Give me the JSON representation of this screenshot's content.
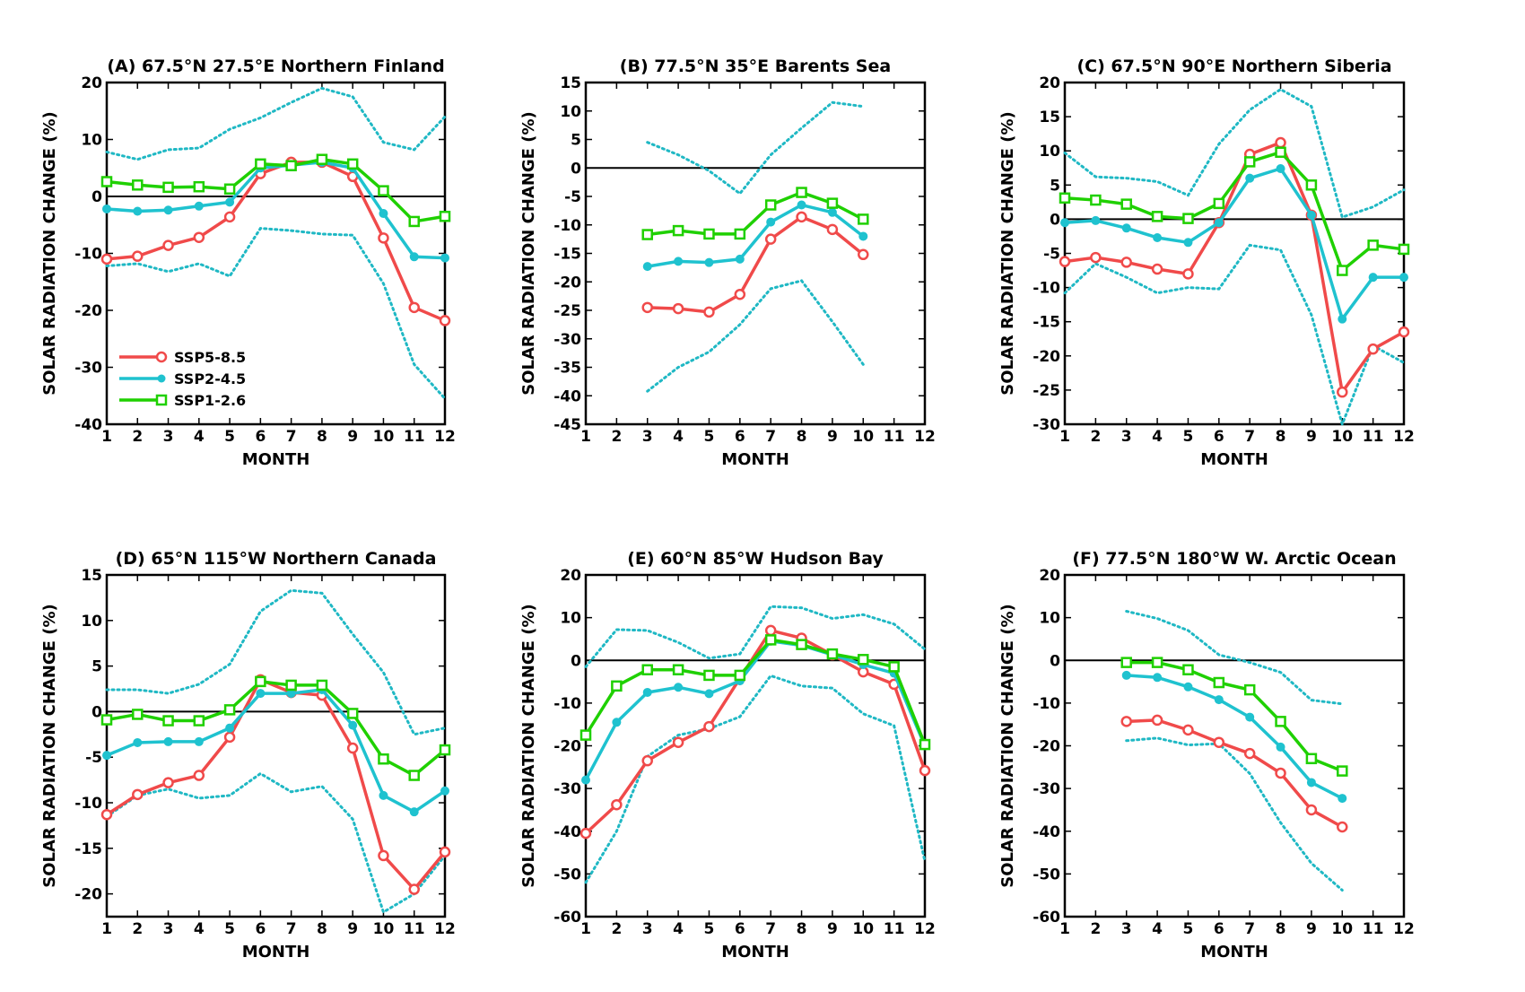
{
  "colors": {
    "ssp585": "#f04a4a",
    "ssp245": "#1fc2cf",
    "ssp126": "#1fd000",
    "spread": "#1fb8c4",
    "axis": "#000000"
  },
  "legend": {
    "placement": "lower-left of panel A",
    "items": [
      {
        "key": "ssp585",
        "label": "SSP5-8.5",
        "marker": "open-circle"
      },
      {
        "key": "ssp245",
        "label": "SSP2-4.5",
        "marker": "filled-circle"
      },
      {
        "key": "ssp126",
        "label": "SSP1-2.6",
        "marker": "open-square"
      }
    ]
  },
  "chart_data": [
    {
      "type": "line",
      "title": "(A) 67.5°N 27.5°E Northern Finland",
      "xlabel": "MONTH",
      "ylabel": "SOLAR RADIATION CHANGE (%)",
      "xlim": [
        1,
        12
      ],
      "ylim": [
        -40,
        20
      ],
      "xticks": [
        1,
        2,
        3,
        4,
        5,
        6,
        7,
        8,
        9,
        10,
        11,
        12
      ],
      "yticks": [
        -40,
        -30,
        -20,
        -10,
        0,
        10,
        20
      ],
      "zero_line": true,
      "grid": false,
      "series": [
        {
          "name": "SSP5-8.5",
          "key": "ssp585",
          "x": [
            1,
            2,
            3,
            4,
            5,
            6,
            7,
            8,
            9,
            10,
            11,
            12
          ],
          "y": [
            -11,
            -10.5,
            -8.6,
            -7.2,
            -3.6,
            4,
            6,
            6,
            3.5,
            -7.3,
            -19.5,
            -21.8
          ]
        },
        {
          "name": "SSP2-4.5",
          "key": "ssp245",
          "x": [
            1,
            2,
            3,
            4,
            5,
            6,
            7,
            8,
            9,
            10,
            11,
            12
          ],
          "y": [
            -2.2,
            -2.6,
            -2.4,
            -1.7,
            -1,
            5,
            5.5,
            6,
            5,
            -3,
            -10.6,
            -10.8
          ]
        },
        {
          "name": "SSP1-2.6",
          "key": "ssp126",
          "x": [
            1,
            2,
            3,
            4,
            5,
            6,
            7,
            8,
            9,
            10,
            11,
            12
          ],
          "y": [
            2.6,
            2,
            1.6,
            1.7,
            1.3,
            5.7,
            5.4,
            6.5,
            5.7,
            1,
            -4.4,
            -3.5
          ]
        }
      ],
      "spread_upper": {
        "x": [
          1,
          2,
          3,
          4,
          5,
          6,
          7,
          8,
          9,
          10,
          11,
          12
        ],
        "y": [
          7.8,
          6.5,
          8.2,
          8.5,
          11.8,
          13.8,
          16.5,
          19,
          17.5,
          9.5,
          8.2,
          14
        ]
      },
      "spread_lower": {
        "x": [
          1,
          2,
          3,
          4,
          5,
          6,
          7,
          8,
          9,
          10,
          11,
          12
        ],
        "y": [
          -12.2,
          -11.8,
          -13.2,
          -11.8,
          -14,
          -5.6,
          -6,
          -6.6,
          -6.8,
          -15.3,
          -29.5,
          -35.5
        ]
      }
    },
    {
      "type": "line",
      "title": "(B) 77.5°N 35°E Barents Sea",
      "xlabel": "MONTH",
      "ylabel": "SOLAR RADIATION CHANGE (%)",
      "xlim": [
        1,
        12
      ],
      "ylim": [
        -45,
        15
      ],
      "xticks": [
        1,
        2,
        3,
        4,
        5,
        6,
        7,
        8,
        9,
        10,
        11,
        12
      ],
      "yticks": [
        -45,
        -40,
        -35,
        -30,
        -25,
        -20,
        -15,
        -10,
        -5,
        0,
        5,
        10,
        15
      ],
      "zero_line": true,
      "grid": false,
      "series": [
        {
          "name": "SSP5-8.5",
          "key": "ssp585",
          "x": [
            3,
            4,
            5,
            6,
            7,
            8,
            9,
            10
          ],
          "y": [
            -24.5,
            -24.7,
            -25.3,
            -22.2,
            -12.5,
            -8.6,
            -10.8,
            -15.2
          ]
        },
        {
          "name": "SSP2-4.5",
          "key": "ssp245",
          "x": [
            3,
            4,
            5,
            6,
            7,
            8,
            9,
            10
          ],
          "y": [
            -17.3,
            -16.4,
            -16.6,
            -16,
            -9.5,
            -6.5,
            -7.8,
            -12
          ]
        },
        {
          "name": "SSP1-2.6",
          "key": "ssp126",
          "x": [
            3,
            4,
            5,
            6,
            7,
            8,
            9,
            10
          ],
          "y": [
            -11.7,
            -11,
            -11.6,
            -11.6,
            -6.5,
            -4.3,
            -6.2,
            -9
          ]
        }
      ],
      "spread_upper": {
        "x": [
          3,
          4,
          5,
          6,
          7,
          8,
          9,
          10
        ],
        "y": [
          4.5,
          2.3,
          -0.5,
          -4.5,
          2.3,
          7,
          11.5,
          10.8
        ]
      },
      "spread_lower": {
        "x": [
          3,
          4,
          5,
          6,
          7,
          8,
          9,
          10
        ],
        "y": [
          -39.2,
          -35,
          -32.3,
          -27.5,
          -21.2,
          -19.8,
          -27,
          -34.5
        ]
      }
    },
    {
      "type": "line",
      "title": "(C) 67.5°N 90°E Northern Siberia",
      "xlabel": "MONTH",
      "ylabel": "SOLAR RADIATION CHANGE (%)",
      "xlim": [
        1,
        12
      ],
      "ylim": [
        -30,
        20
      ],
      "xticks": [
        1,
        2,
        3,
        4,
        5,
        6,
        7,
        8,
        9,
        10,
        11,
        12
      ],
      "yticks": [
        -30,
        -25,
        -20,
        -15,
        -10,
        -5,
        0,
        5,
        10,
        15,
        20
      ],
      "zero_line": true,
      "grid": false,
      "series": [
        {
          "name": "SSP5-8.5",
          "key": "ssp585",
          "x": [
            1,
            2,
            3,
            4,
            5,
            6,
            7,
            8,
            9,
            10,
            11,
            12
          ],
          "y": [
            -6.2,
            -5.6,
            -6.3,
            -7.3,
            -8,
            -0.5,
            9.5,
            11.2,
            0.6,
            -25.3,
            -19,
            -16.5
          ]
        },
        {
          "name": "SSP2-4.5",
          "key": "ssp245",
          "x": [
            1,
            2,
            3,
            4,
            5,
            6,
            7,
            8,
            9,
            10,
            11,
            12
          ],
          "y": [
            -0.5,
            -0.2,
            -1.3,
            -2.7,
            -3.4,
            -0.5,
            6,
            7.4,
            0.6,
            -14.6,
            -8.5,
            -8.5
          ]
        },
        {
          "name": "SSP1-2.6",
          "key": "ssp126",
          "x": [
            1,
            2,
            3,
            4,
            5,
            6,
            7,
            8,
            9,
            10,
            11,
            12
          ],
          "y": [
            3.1,
            2.8,
            2.2,
            0.4,
            0.1,
            2.3,
            8.4,
            9.8,
            5,
            -7.5,
            -3.8,
            -4.4
          ]
        }
      ],
      "spread_upper": {
        "x": [
          1,
          2,
          3,
          4,
          5,
          6,
          7,
          8,
          9,
          10,
          11,
          12
        ],
        "y": [
          9.7,
          6.2,
          6,
          5.5,
          3.5,
          11,
          16,
          19,
          16.5,
          0.3,
          1.8,
          4.3
        ]
      },
      "spread_lower": {
        "x": [
          1,
          2,
          3,
          4,
          5,
          6,
          7,
          8,
          9,
          10,
          11,
          12
        ],
        "y": [
          -10.8,
          -6.5,
          -8.5,
          -10.8,
          -10,
          -10.2,
          -3.8,
          -4.5,
          -14,
          -30,
          -18.5,
          -21
        ]
      }
    },
    {
      "type": "line",
      "title": "(D) 65°N 115°W Northern Canada",
      "xlabel": "MONTH",
      "ylabel": "SOLAR RADIATION CHANGE (%)",
      "xlim": [
        1,
        12
      ],
      "ylim": [
        -22.5,
        15
      ],
      "xticks": [
        1,
        2,
        3,
        4,
        5,
        6,
        7,
        8,
        9,
        10,
        11,
        12
      ],
      "yticks": [
        -20,
        -15,
        -10,
        -5,
        0,
        5,
        10,
        15
      ],
      "zero_line": true,
      "grid": false,
      "series": [
        {
          "name": "SSP5-8.5",
          "key": "ssp585",
          "x": [
            1,
            2,
            3,
            4,
            5,
            6,
            7,
            8,
            9,
            10,
            11,
            12
          ],
          "y": [
            -11.3,
            -9.1,
            -7.8,
            -7,
            -2.8,
            3.5,
            2.1,
            1.8,
            -4,
            -15.8,
            -19.5,
            -15.4
          ]
        },
        {
          "name": "SSP2-4.5",
          "key": "ssp245",
          "x": [
            1,
            2,
            3,
            4,
            5,
            6,
            7,
            8,
            9,
            10,
            11,
            12
          ],
          "y": [
            -4.8,
            -3.4,
            -3.3,
            -3.3,
            -1.8,
            2,
            2,
            2.4,
            -1.5,
            -9.2,
            -11,
            -8.7
          ]
        },
        {
          "name": "SSP1-2.6",
          "key": "ssp126",
          "x": [
            1,
            2,
            3,
            4,
            5,
            6,
            7,
            8,
            9,
            10,
            11,
            12
          ],
          "y": [
            -0.9,
            -0.3,
            -1,
            -1,
            0.2,
            3.3,
            2.9,
            2.9,
            -0.2,
            -5.2,
            -7,
            -4.2
          ]
        }
      ],
      "spread_upper": {
        "x": [
          1,
          2,
          3,
          4,
          5,
          6,
          7,
          8,
          9,
          10,
          11,
          12
        ],
        "y": [
          2.4,
          2.4,
          2,
          3,
          5.2,
          11,
          13.3,
          13,
          8.5,
          4.3,
          -2.5,
          -1.8
        ]
      },
      "spread_lower": {
        "x": [
          1,
          2,
          3,
          4,
          5,
          6,
          7,
          8,
          9,
          10,
          11,
          12
        ],
        "y": [
          -11.5,
          -9.2,
          -8.5,
          -9.5,
          -9.2,
          -6.8,
          -8.8,
          -8.2,
          -11.8,
          -22,
          -20,
          -15.8
        ]
      }
    },
    {
      "type": "line",
      "title": "(E) 60°N 85°W Hudson Bay",
      "xlabel": "MONTH",
      "ylabel": "SOLAR RADIATION CHANGE (%)",
      "xlim": [
        1,
        12
      ],
      "ylim": [
        -60,
        20
      ],
      "xticks": [
        1,
        2,
        3,
        4,
        5,
        6,
        7,
        8,
        9,
        10,
        11,
        12
      ],
      "yticks": [
        -60,
        -50,
        -40,
        -30,
        -20,
        -10,
        0,
        10,
        20
      ],
      "zero_line": true,
      "grid": false,
      "series": [
        {
          "name": "SSP5-8.5",
          "key": "ssp585",
          "x": [
            1,
            2,
            3,
            4,
            5,
            6,
            7,
            8,
            9,
            10,
            11,
            12
          ],
          "y": [
            -40.5,
            -33.8,
            -23.5,
            -19.2,
            -15.5,
            -4.2,
            7,
            5.2,
            1.3,
            -2.7,
            -5.6,
            -25.8
          ]
        },
        {
          "name": "SSP2-4.5",
          "key": "ssp245",
          "x": [
            1,
            2,
            3,
            4,
            5,
            6,
            7,
            8,
            9,
            10,
            11,
            12
          ],
          "y": [
            -28,
            -14.5,
            -7.5,
            -6.3,
            -7.8,
            -4.8,
            4.5,
            3.5,
            1.3,
            -1,
            -3,
            -20
          ]
        },
        {
          "name": "SSP1-2.6",
          "key": "ssp126",
          "x": [
            1,
            2,
            3,
            4,
            5,
            6,
            7,
            8,
            9,
            10,
            11,
            12
          ],
          "y": [
            -17.5,
            -6,
            -2.2,
            -2.2,
            -3.5,
            -3.5,
            4.8,
            3.7,
            1.5,
            0.2,
            -1.5,
            -19.7
          ]
        }
      ],
      "spread_upper": {
        "x": [
          1,
          2,
          3,
          4,
          5,
          6,
          7,
          8,
          9,
          10,
          11,
          12
        ],
        "y": [
          -1.5,
          7.2,
          7,
          4.2,
          0.5,
          1.5,
          12.6,
          12.3,
          9.8,
          10.7,
          8.5,
          2.6
        ]
      },
      "spread_lower": {
        "x": [
          1,
          2,
          3,
          4,
          5,
          6,
          7,
          8,
          9,
          10,
          11,
          12
        ],
        "y": [
          -52,
          -40,
          -22.5,
          -17.5,
          -16,
          -13.2,
          -3.6,
          -6,
          -6.5,
          -12.5,
          -15.3,
          -47
        ]
      }
    },
    {
      "type": "line",
      "title": "(F) 77.5°N 180°W W. Arctic Ocean",
      "xlabel": "MONTH",
      "ylabel": "SOLAR RADIATION CHANGE (%)",
      "xlim": [
        1,
        12
      ],
      "ylim": [
        -60,
        20
      ],
      "xticks": [
        1,
        2,
        3,
        4,
        5,
        6,
        7,
        8,
        9,
        10,
        11,
        12
      ],
      "yticks": [
        -60,
        -50,
        -40,
        -30,
        -20,
        -10,
        0,
        10,
        20
      ],
      "zero_line": true,
      "grid": false,
      "series": [
        {
          "name": "SSP5-8.5",
          "key": "ssp585",
          "x": [
            3,
            4,
            5,
            6,
            7,
            8,
            9,
            10
          ],
          "y": [
            -14.3,
            -14,
            -16.3,
            -19.2,
            -21.8,
            -26.4,
            -35,
            -39
          ]
        },
        {
          "name": "SSP2-4.5",
          "key": "ssp245",
          "x": [
            3,
            4,
            5,
            6,
            7,
            8,
            9,
            10
          ],
          "y": [
            -3.5,
            -4,
            -6.2,
            -9.2,
            -13.3,
            -20.3,
            -28.6,
            -32.3
          ]
        },
        {
          "name": "SSP1-2.6",
          "key": "ssp126",
          "x": [
            3,
            4,
            5,
            6,
            7,
            8,
            9,
            10
          ],
          "y": [
            -0.5,
            -0.5,
            -2.2,
            -5.2,
            -6.9,
            -14.3,
            -23,
            -25.9
          ]
        }
      ],
      "spread_upper": {
        "x": [
          3,
          4,
          5,
          6,
          7,
          8,
          9,
          10
        ],
        "y": [
          11.5,
          9.8,
          7,
          1.3,
          -0.5,
          -2.8,
          -9.3,
          -10.2
        ]
      },
      "spread_lower": {
        "x": [
          3,
          4,
          5,
          6,
          7,
          8,
          9,
          10
        ],
        "y": [
          -18.8,
          -18.2,
          -19.8,
          -19.5,
          -26.5,
          -38,
          -47.5,
          -53.8
        ]
      }
    }
  ]
}
